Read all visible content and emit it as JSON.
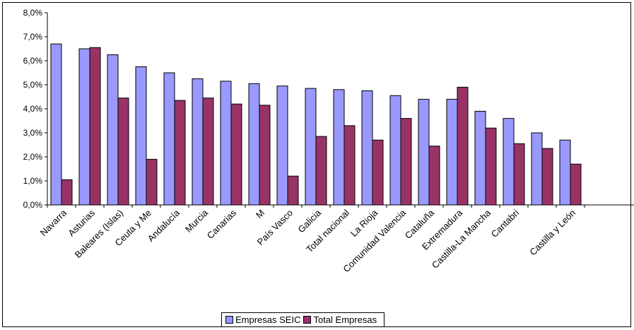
{
  "chart_data": {
    "type": "bar",
    "categories": [
      "Navarra",
      "Asturias",
      "Baleares (Islas)",
      "Ceuta y Me",
      "Andalucía",
      "Murcia",
      "Canarias",
      "M",
      "País Vasco",
      "Galicia",
      "Total nacional",
      "La Rioja",
      "Comunidad Valencia",
      "Cataluña",
      "Extremadura",
      "Castilla-La Mancha",
      "Cantabri",
      "",
      "Castilla y León"
    ],
    "series": [
      {
        "name": "Empresas SEIC",
        "color": "#9999ff",
        "values": [
          6.7,
          6.5,
          6.25,
          5.75,
          5.5,
          5.25,
          5.15,
          5.05,
          4.95,
          4.85,
          4.8,
          4.75,
          4.55,
          4.4,
          4.4,
          3.9,
          3.6,
          3.0,
          2.7
        ]
      },
      {
        "name": "Total Empresas",
        "color": "#993366",
        "values": [
          1.05,
          6.55,
          4.45,
          1.9,
          4.35,
          4.45,
          4.2,
          4.15,
          1.2,
          2.85,
          3.3,
          2.7,
          3.6,
          2.45,
          4.9,
          3.2,
          2.55,
          2.35,
          1.7
        ]
      }
    ],
    "yticks": [
      "0,0%",
      "1,0%",
      "2,0%",
      "3,0%",
      "4,0%",
      "5,0%",
      "6,0%",
      "7,0%",
      "8,0%"
    ],
    "ylim": [
      0,
      8
    ],
    "grid": false,
    "legend_position": "bottom"
  }
}
